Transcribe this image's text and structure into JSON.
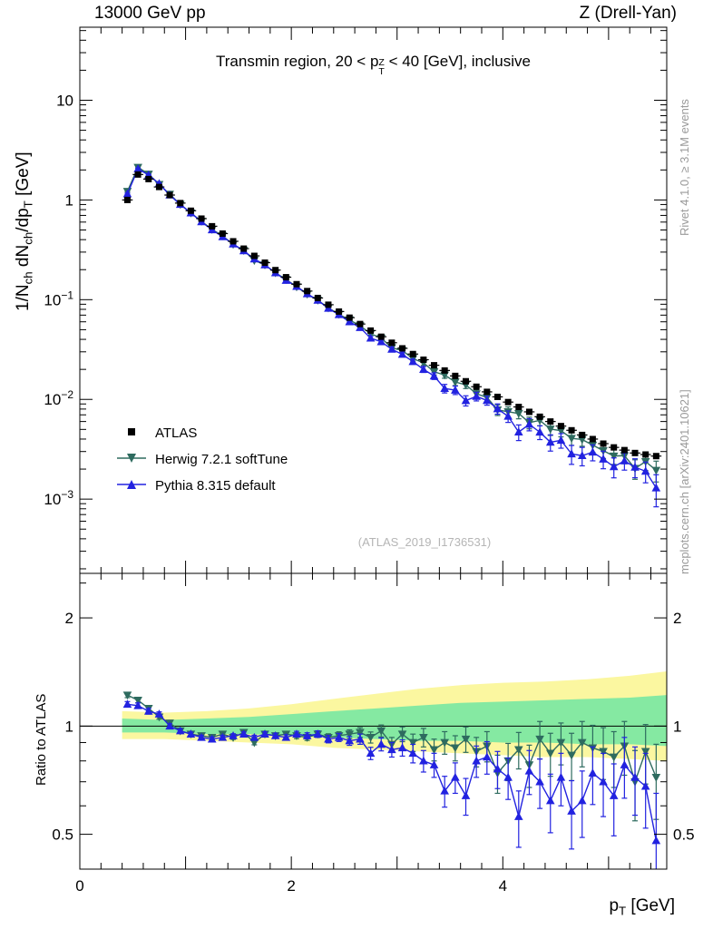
{
  "labels": {
    "header_left": "13000 GeV pp",
    "header_right": "Z (Drell-Yan)",
    "title": {
      "pre": "Transmin region, 20 < p",
      "sup": "Z",
      "sub": "T",
      "post": " < 40 [GeV], inclusive"
    },
    "ylabel_main": {
      "p1": "1/N",
      "s1": "ch",
      "p2": " dN",
      "s2": "ch",
      "p3": "/dp",
      "s3": "T",
      "p4": " [GeV]"
    },
    "ylabel_ratio": "Ratio to ATLAS",
    "xlabel": {
      "p": "p",
      "sub": "T",
      "post": " [GeV]"
    },
    "watermark": "(ATLAS_2019_I1736531)",
    "side_top": "Rivet 4.1.0, ≥ 3.1M events",
    "side_bottom": "mcplots.cern.ch [arXiv:2401.10621]"
  },
  "colors": {
    "atlas": "#000000",
    "herwig": "#2e6b5f",
    "pythia": "#2222e0",
    "band_yellow": "#fbf7a0",
    "band_green": "#85e9a2",
    "frame": "#000000"
  },
  "chart_data": {
    "type": "scatter",
    "title": "Transmin region, 20 < pT(Z) < 40 [GeV], inclusive",
    "xlabel": "pT [GeV]",
    "ylabel": "1/Nch dNch/dpT [GeV]",
    "ratio_label": "Ratio to ATLAS",
    "x_range": [
      0,
      5.55
    ],
    "main_y": {
      "scale": "log",
      "range": [
        0.00018,
        54
      ],
      "ticks": [
        {
          "v": 10,
          "base": "10",
          "exp": ""
        },
        {
          "v": 1,
          "base": "1",
          "exp": ""
        },
        {
          "v": 0.1,
          "base": "10",
          "exp": "−1"
        },
        {
          "v": 0.01,
          "base": "10",
          "exp": "−2"
        },
        {
          "v": 0.001,
          "base": "10",
          "exp": "−3"
        }
      ]
    },
    "ratio_y": {
      "scale": "log",
      "range": [
        0.4,
        2.66
      ],
      "ticks": [
        {
          "v": 2,
          "label": "2"
        },
        {
          "v": 1,
          "label": "1"
        },
        {
          "v": 0.5,
          "label": "0.5"
        }
      ],
      "minor": [
        0.4,
        0.6,
        0.7,
        0.8,
        0.9,
        2.5
      ]
    },
    "x_ticks": {
      "major": [
        0,
        1,
        2,
        3,
        4,
        5
      ],
      "labeled": [
        0,
        2,
        4
      ],
      "minor_step": 0.2
    },
    "x": [
      0.45,
      0.55,
      0.65,
      0.75,
      0.85,
      0.95,
      1.05,
      1.15,
      1.25,
      1.35,
      1.45,
      1.55,
      1.65,
      1.75,
      1.85,
      1.95,
      2.05,
      2.15,
      2.25,
      2.35,
      2.45,
      2.55,
      2.65,
      2.75,
      2.85,
      2.95,
      3.05,
      3.15,
      3.25,
      3.35,
      3.45,
      3.55,
      3.65,
      3.75,
      3.85,
      3.95,
      4.05,
      4.15,
      4.25,
      4.35,
      4.45,
      4.55,
      4.65,
      4.75,
      4.85,
      4.95,
      5.05,
      5.15,
      5.25,
      5.35,
      5.45
    ],
    "series": [
      {
        "name": "ATLAS",
        "marker": "square",
        "color": "#000000",
        "err_frac": 0.03,
        "values": [
          1.0,
          1.8,
          1.62,
          1.35,
          1.12,
          0.93,
          0.78,
          0.65,
          0.545,
          0.46,
          0.385,
          0.325,
          0.275,
          0.235,
          0.198,
          0.168,
          0.143,
          0.122,
          0.104,
          0.089,
          0.076,
          0.066,
          0.057,
          0.049,
          0.0425,
          0.037,
          0.0325,
          0.0285,
          0.025,
          0.022,
          0.0195,
          0.0172,
          0.0152,
          0.0134,
          0.0119,
          0.0106,
          0.0094,
          0.0084,
          0.0075,
          0.0067,
          0.006,
          0.0054,
          0.0049,
          0.0044,
          0.004,
          0.0036,
          0.0033,
          0.0031,
          0.0029,
          0.0028,
          0.0027
        ]
      },
      {
        "name": "Herwig 7.2.1 softTune",
        "marker": "triangle-down",
        "color": "#2e6b5f",
        "ratio": [
          1.22,
          1.18,
          1.12,
          1.06,
          1.02,
          0.97,
          0.95,
          0.94,
          0.93,
          0.95,
          0.93,
          0.96,
          0.9,
          0.95,
          0.94,
          0.95,
          0.94,
          0.93,
          0.95,
          0.93,
          0.94,
          0.95,
          0.96,
          0.93,
          0.97,
          0.89,
          0.95,
          0.9,
          0.93,
          0.86,
          0.9,
          0.87,
          0.92,
          0.85,
          0.88,
          0.74,
          0.8,
          0.86,
          0.78,
          0.92,
          0.84,
          0.9,
          0.83,
          0.9,
          0.87,
          0.85,
          0.82,
          0.88,
          0.7,
          0.85,
          0.72
        ],
        "ratio_err": [
          0.02,
          0.02,
          0.02,
          0.015,
          0.015,
          0.012,
          0.012,
          0.012,
          0.012,
          0.012,
          0.012,
          0.013,
          0.013,
          0.014,
          0.015,
          0.016,
          0.017,
          0.018,
          0.02,
          0.022,
          0.024,
          0.026,
          0.03,
          0.033,
          0.037,
          0.04,
          0.045,
          0.05,
          0.055,
          0.06,
          0.065,
          0.07,
          0.075,
          0.08,
          0.085,
          0.09,
          0.095,
          0.1,
          0.105,
          0.11,
          0.115,
          0.12,
          0.125,
          0.13,
          0.135,
          0.14,
          0.145,
          0.15,
          0.155,
          0.16,
          0.17
        ]
      },
      {
        "name": "Pythia 8.315 default",
        "marker": "triangle-up",
        "color": "#2222e0",
        "ratio": [
          1.15,
          1.14,
          1.1,
          1.08,
          1.0,
          0.97,
          0.95,
          0.93,
          0.92,
          0.93,
          0.94,
          0.95,
          0.93,
          0.95,
          0.94,
          0.93,
          0.95,
          0.94,
          0.95,
          0.92,
          0.93,
          0.91,
          0.92,
          0.84,
          0.89,
          0.86,
          0.87,
          0.84,
          0.8,
          0.78,
          0.66,
          0.72,
          0.64,
          0.8,
          0.82,
          0.76,
          0.72,
          0.56,
          0.75,
          0.7,
          0.62,
          0.72,
          0.58,
          0.62,
          0.74,
          0.7,
          0.64,
          0.78,
          0.72,
          0.68,
          0.48
        ],
        "ratio_err": [
          0.02,
          0.02,
          0.02,
          0.015,
          0.015,
          0.012,
          0.012,
          0.012,
          0.012,
          0.012,
          0.012,
          0.013,
          0.013,
          0.014,
          0.015,
          0.016,
          0.017,
          0.018,
          0.02,
          0.022,
          0.024,
          0.026,
          0.03,
          0.033,
          0.037,
          0.04,
          0.045,
          0.05,
          0.055,
          0.06,
          0.065,
          0.07,
          0.075,
          0.08,
          0.085,
          0.09,
          0.095,
          0.1,
          0.105,
          0.11,
          0.115,
          0.12,
          0.125,
          0.13,
          0.135,
          0.14,
          0.145,
          0.15,
          0.155,
          0.16,
          0.17
        ]
      }
    ],
    "bands": {
      "x": [
        0.4,
        0.8,
        1.2,
        1.6,
        2.0,
        2.4,
        2.8,
        3.2,
        3.6,
        4.0,
        4.4,
        4.8,
        5.2,
        5.55
      ],
      "yellow_hi": [
        1.1,
        1.09,
        1.1,
        1.12,
        1.15,
        1.19,
        1.23,
        1.27,
        1.3,
        1.32,
        1.33,
        1.35,
        1.38,
        1.42
      ],
      "yellow_lo": [
        0.92,
        0.92,
        0.91,
        0.9,
        0.89,
        0.87,
        0.86,
        0.85,
        0.84,
        0.83,
        0.82,
        0.82,
        0.81,
        0.8
      ],
      "green_hi": [
        1.05,
        1.04,
        1.05,
        1.06,
        1.08,
        1.1,
        1.12,
        1.14,
        1.16,
        1.17,
        1.18,
        1.19,
        1.2,
        1.22
      ],
      "green_lo": [
        0.96,
        0.96,
        0.95,
        0.95,
        0.94,
        0.93,
        0.92,
        0.91,
        0.91,
        0.9,
        0.9,
        0.89,
        0.89,
        0.88
      ]
    },
    "legend_position": "lower-left",
    "grid": false
  }
}
